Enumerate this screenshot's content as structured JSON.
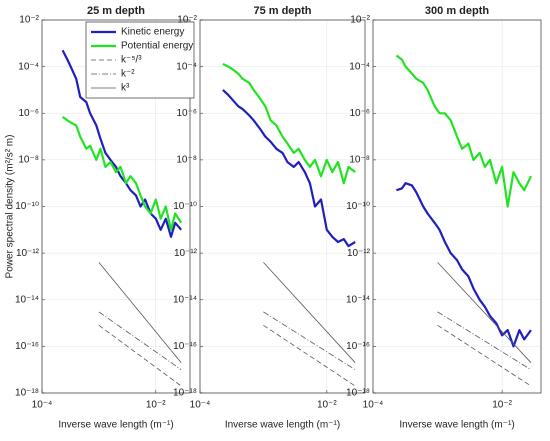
{
  "chart_data": [
    {
      "type": "line",
      "title": "25 m depth",
      "xlabel": "Inverse wave length (m⁻¹)",
      "ylabel": "Power spectral density (m²/s² m)",
      "xscale": "log",
      "yscale": "log",
      "grid": true,
      "legend": "upper right",
      "xlim": [
        0.0001,
        0.04
      ],
      "xticks": [
        {
          "value": 0.0001,
          "label": "10⁻⁴"
        },
        {
          "value": 0.01,
          "label": "10⁻²"
        }
      ],
      "ylim": [
        1e-18,
        0.01
      ],
      "yticks": [
        {
          "value": 1e-18,
          "label": "10⁻¹⁸"
        },
        {
          "value": 1e-16,
          "label": "10⁻¹⁶"
        },
        {
          "value": 1e-14,
          "label": "10⁻¹⁴"
        },
        {
          "value": 1e-12,
          "label": "10⁻¹²"
        },
        {
          "value": 1e-10,
          "label": "10⁻¹⁰"
        },
        {
          "value": 1e-08,
          "label": "10⁻⁸"
        },
        {
          "value": 1e-06,
          "label": "10⁻⁶"
        },
        {
          "value": 0.0001,
          "label": "10⁻⁴"
        },
        {
          "value": 0.01,
          "label": "10⁻²"
        }
      ],
      "series": [
        {
          "name": "Kinetic energy",
          "color": "#1f1fbf",
          "dash": "solid",
          "x": [
            0.00023,
            0.00028,
            0.00032,
            0.0004,
            0.00047,
            0.0006,
            0.0007,
            0.0009,
            0.00107,
            0.0013,
            0.0016,
            0.002,
            0.0024,
            0.003,
            0.0036,
            0.0045,
            0.0054,
            0.0065,
            0.0081,
            0.01,
            0.0122,
            0.015,
            0.0185,
            0.022,
            0.028
          ],
          "values": [
            0.0005,
            0.0002,
            0.0001,
            3e-05,
            5e-06,
            3e-06,
            1e-06,
            3e-07,
            8e-08,
            2e-08,
            1e-08,
            5e-09,
            2e-09,
            1e-09,
            5e-10,
            3e-10,
            1e-10,
            2e-10,
            5e-11,
            3e-11,
            1e-11,
            3e-11,
            5e-12,
            2e-11,
            1e-11
          ]
        },
        {
          "name": "Potential energy",
          "color": "#22e322",
          "dash": "solid",
          "x": [
            0.00023,
            0.00028,
            0.00032,
            0.0004,
            0.00047,
            0.0006,
            0.0007,
            0.0009,
            0.00107,
            0.0013,
            0.0016,
            0.002,
            0.0024,
            0.003,
            0.0036,
            0.0045,
            0.0054,
            0.0065,
            0.0081,
            0.01,
            0.0122,
            0.015,
            0.0185,
            0.022,
            0.028
          ],
          "values": [
            7e-07,
            5e-07,
            4e-07,
            3e-07,
            1e-07,
            3e-08,
            4e-08,
            1e-08,
            3e-08,
            5e-09,
            8e-09,
            3e-09,
            5e-09,
            1e-09,
            2e-09,
            1e-09,
            3e-10,
            1e-10,
            5e-11,
            2e-10,
            3e-11,
            1e-10,
            1e-11,
            5e-11,
            2e-11
          ]
        },
        {
          "name": "k⁻⁵/³",
          "color": "#555555",
          "dash": "dashed",
          "x": [
            0.001,
            0.028
          ],
          "values": [
            8e-16,
            2e-18
          ]
        },
        {
          "name": "k⁻²",
          "color": "#555555",
          "dash": "dashdot",
          "x": [
            0.001,
            0.028
          ],
          "values": [
            3e-15,
            1e-17
          ]
        },
        {
          "name": "k³",
          "color": "#555555",
          "dash": "thin",
          "x": [
            0.001,
            0.028
          ],
          "values": [
            4e-13,
            2e-17
          ]
        }
      ]
    },
    {
      "type": "line",
      "title": "75 m depth",
      "xlabel": "Inverse wave length (m⁻¹)",
      "xscale": "log",
      "yscale": "log",
      "grid": true,
      "xlim": [
        0.0001,
        0.04
      ],
      "xticks": [
        {
          "value": 0.0001,
          "label": "10⁻⁴"
        },
        {
          "value": 0.01,
          "label": "10⁻²"
        }
      ],
      "ylim": [
        1e-18,
        0.01
      ],
      "yticks": [
        {
          "value": 1e-18,
          "label": "10⁻¹⁸"
        },
        {
          "value": 1e-16,
          "label": "10⁻¹⁶"
        },
        {
          "value": 1e-14,
          "label": "10⁻¹⁴"
        },
        {
          "value": 1e-12,
          "label": "10⁻¹²"
        },
        {
          "value": 1e-10,
          "label": "10⁻¹⁰"
        },
        {
          "value": 1e-08,
          "label": "10⁻⁸"
        },
        {
          "value": 1e-06,
          "label": "10⁻⁶"
        },
        {
          "value": 0.0001,
          "label": "10⁻⁴"
        },
        {
          "value": 0.01,
          "label": "10⁻²"
        }
      ],
      "series": [
        {
          "color": "#1f1fbf",
          "dash": "solid",
          "x": [
            0.00023,
            0.00028,
            0.00032,
            0.0004,
            0.00047,
            0.0006,
            0.0007,
            0.0009,
            0.00107,
            0.0013,
            0.0016,
            0.002,
            0.0024,
            0.003,
            0.0036,
            0.0045,
            0.0054,
            0.0065,
            0.0081,
            0.01,
            0.0122,
            0.015,
            0.0185,
            0.022,
            0.028
          ],
          "values": [
            1e-05,
            6e-06,
            4e-06,
            2e-06,
            1.5e-06,
            8e-07,
            5e-07,
            2e-07,
            1e-07,
            6e-08,
            3e-08,
            2e-08,
            8e-09,
            5e-09,
            8e-09,
            3e-09,
            1e-09,
            1e-10,
            2e-10,
            1e-11,
            5e-12,
            3e-12,
            4e-12,
            2e-12,
            3e-12
          ]
        },
        {
          "color": "#22e322",
          "dash": "solid",
          "x": [
            0.00023,
            0.00028,
            0.00032,
            0.0004,
            0.00047,
            0.0006,
            0.0007,
            0.0009,
            0.00107,
            0.0013,
            0.0016,
            0.002,
            0.0024,
            0.003,
            0.0036,
            0.0045,
            0.0054,
            0.0065,
            0.0081,
            0.01,
            0.0122,
            0.015,
            0.0185,
            0.022,
            0.028
          ],
          "values": [
            0.00013,
            0.0001,
            8e-05,
            5e-05,
            3e-05,
            2e-05,
            1e-05,
            4e-06,
            2e-06,
            5e-07,
            3e-07,
            1e-07,
            5e-08,
            2e-08,
            3e-08,
            1e-08,
            5e-09,
            1e-08,
            2e-09,
            1e-08,
            3e-09,
            8e-09,
            1e-09,
            5e-09,
            3e-09
          ]
        },
        {
          "color": "#555555",
          "dash": "dashed",
          "x": [
            0.001,
            0.028
          ],
          "values": [
            8e-16,
            2e-18
          ]
        },
        {
          "color": "#555555",
          "dash": "dashdot",
          "x": [
            0.001,
            0.028
          ],
          "values": [
            3e-15,
            1e-17
          ]
        },
        {
          "color": "#555555",
          "dash": "thin",
          "x": [
            0.001,
            0.028
          ],
          "values": [
            4e-13,
            2e-17
          ]
        }
      ]
    },
    {
      "type": "line",
      "title": "300 m depth",
      "xlabel": "Inverse wave length (m⁻¹)",
      "xscale": "log",
      "yscale": "log",
      "grid": true,
      "xlim": [
        0.0001,
        0.04
      ],
      "xticks": [
        {
          "value": 0.0001,
          "label": "10⁻⁴"
        },
        {
          "value": 0.01,
          "label": "10⁻²"
        }
      ],
      "ylim": [
        1e-18,
        0.01
      ],
      "yticks": [
        {
          "value": 1e-18,
          "label": "10⁻¹⁸"
        },
        {
          "value": 1e-16,
          "label": "10⁻¹⁶"
        },
        {
          "value": 1e-14,
          "label": "10⁻¹⁴"
        },
        {
          "value": 1e-12,
          "label": "10⁻¹²"
        },
        {
          "value": 1e-10,
          "label": "10⁻¹⁰"
        },
        {
          "value": 1e-08,
          "label": "10⁻⁸"
        },
        {
          "value": 1e-06,
          "label": "10⁻⁶"
        },
        {
          "value": 0.0001,
          "label": "10⁻⁴"
        },
        {
          "value": 0.01,
          "label": "10⁻²"
        }
      ],
      "series": [
        {
          "color": "#1f1fbf",
          "dash": "solid",
          "x": [
            0.00023,
            0.00028,
            0.00032,
            0.0004,
            0.00047,
            0.0006,
            0.0007,
            0.0009,
            0.00107,
            0.0013,
            0.0016,
            0.002,
            0.0024,
            0.003,
            0.0036,
            0.0045,
            0.0054,
            0.0065,
            0.0081,
            0.01,
            0.0122,
            0.015,
            0.0185,
            0.022,
            0.028
          ],
          "values": [
            5e-10,
            6e-10,
            1e-09,
            8e-10,
            4e-10,
            1e-10,
            5e-11,
            2e-11,
            1e-11,
            3e-12,
            1e-12,
            5e-13,
            2e-13,
            1e-13,
            3e-14,
            1e-14,
            5e-15,
            2e-15,
            1e-15,
            3e-16,
            5e-16,
            1e-16,
            5e-16,
            2e-16,
            5e-16
          ]
        },
        {
          "color": "#22e322",
          "dash": "solid",
          "x": [
            0.00023,
            0.00028,
            0.00032,
            0.0004,
            0.00047,
            0.0006,
            0.0007,
            0.0009,
            0.00107,
            0.0013,
            0.0016,
            0.002,
            0.0024,
            0.003,
            0.0036,
            0.0045,
            0.0054,
            0.0065,
            0.0081,
            0.01,
            0.0122,
            0.015,
            0.0185,
            0.022,
            0.028
          ],
          "values": [
            0.0003,
            0.0002,
            0.0001,
            5e-05,
            3e-05,
            2e-05,
            1e-05,
            2e-06,
            1e-06,
            1e-06,
            5e-07,
            1e-07,
            3e-08,
            5e-08,
            1e-08,
            2e-08,
            5e-09,
            1e-08,
            1e-09,
            5e-09,
            1e-10,
            3e-09,
            1e-09,
            5e-10,
            2e-09
          ]
        },
        {
          "color": "#555555",
          "dash": "dashed",
          "x": [
            0.001,
            0.028
          ],
          "values": [
            8e-16,
            2e-18
          ]
        },
        {
          "color": "#555555",
          "dash": "dashdot",
          "x": [
            0.001,
            0.028
          ],
          "values": [
            3e-15,
            1e-17
          ]
        },
        {
          "color": "#555555",
          "dash": "thin",
          "x": [
            0.001,
            0.028
          ],
          "values": [
            4e-13,
            2e-17
          ]
        }
      ]
    }
  ]
}
